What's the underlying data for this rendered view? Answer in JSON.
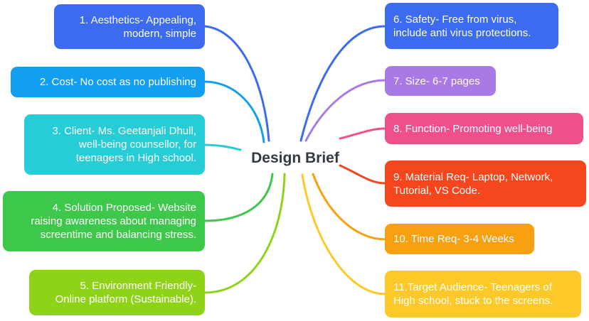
{
  "center": {
    "label": "Design Brief"
  },
  "nodes": [
    {
      "id": "aesthetics",
      "label": "1. Aesthetics- Appealing,\nmodern, simple",
      "color": "#3c6bf0"
    },
    {
      "id": "cost",
      "label": "2. Cost- No cost as no publishing",
      "color": "#129ff0"
    },
    {
      "id": "client",
      "label": "3. Client- Ms. Geetanjali Dhull,\nwell-being counsellor, for\nteenagers in High school.",
      "color": "#26cdd7"
    },
    {
      "id": "solution",
      "label": "4. Solution Proposed- Website\nraising awareness about managing\nscreentime and balancing stress.",
      "color": "#3dc74b"
    },
    {
      "id": "environment",
      "label": "5. Environment Friendly-\nOnline platform (Sustainable).",
      "color": "#8fd319"
    },
    {
      "id": "safety",
      "label": "6. Safety- Free from virus,\ninclude anti virus protections.",
      "color": "#3c6bf0"
    },
    {
      "id": "size",
      "label": "7. Size- 6-7 pages",
      "color": "#a97ae6"
    },
    {
      "id": "function",
      "label": "8. Function- Promoting well-being",
      "color": "#f0508a"
    },
    {
      "id": "material",
      "label": "9.  Material Req- Laptop, Network,\nTutorial, VS Code.",
      "color": "#f5461e"
    },
    {
      "id": "time",
      "label": "10. Time Req- 3-4 Weeks",
      "color": "#f8a00f"
    },
    {
      "id": "audience",
      "label": "11.Target Audience- Teenagers of\nHigh school, stuck to the screens.",
      "color": "#fcc928"
    }
  ]
}
